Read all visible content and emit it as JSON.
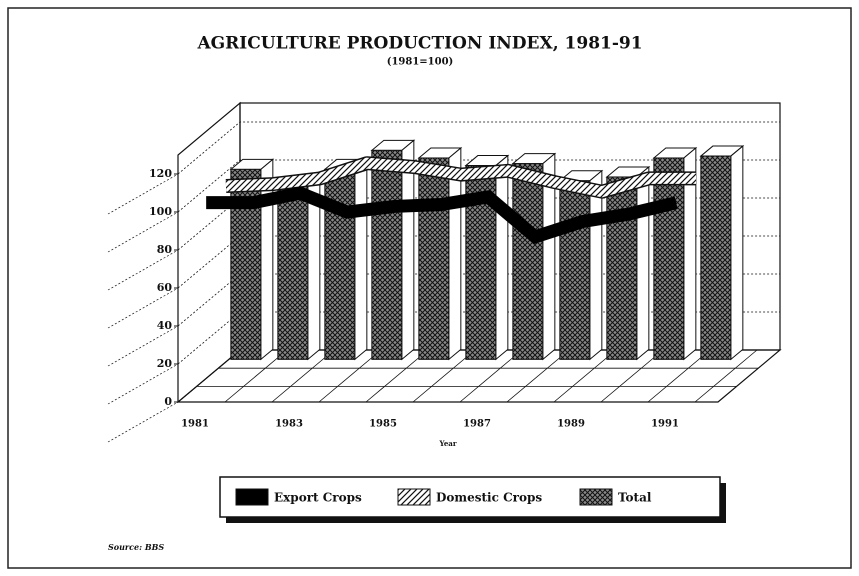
{
  "chart_data": {
    "type": "bar3d",
    "title": "AGRICULTURE PRODUCTION INDEX, 1981-91",
    "subtitle": "(1981=100)",
    "x_label": "Year",
    "source": "Source: BBS",
    "categories": [
      "1981",
      null,
      "1983",
      null,
      "1985",
      null,
      "1987",
      null,
      "1989",
      null,
      "1991"
    ],
    "series": [
      {
        "name": "Export Crops",
        "color": "#000000",
        "style": "solid",
        "values": [
          100,
          100,
          105,
          95,
          98,
          99,
          103,
          82,
          90,
          94,
          100
        ]
      },
      {
        "name": "Domestic Crops",
        "color": "#000000",
        "style": "hatch",
        "values": [
          100,
          101,
          104,
          112,
          110,
          106,
          108,
          102,
          97,
          104,
          104
        ]
      },
      {
        "name": "Total",
        "color": "#000000",
        "style": "crosshatch",
        "values": [
          100,
          91,
          100,
          110,
          106,
          102,
          103,
          94,
          96,
          106,
          107
        ]
      }
    ],
    "ylim": [
      0,
      130
    ],
    "yticks": [
      0,
      20,
      40,
      60,
      80,
      100,
      120
    ],
    "grid": true
  }
}
